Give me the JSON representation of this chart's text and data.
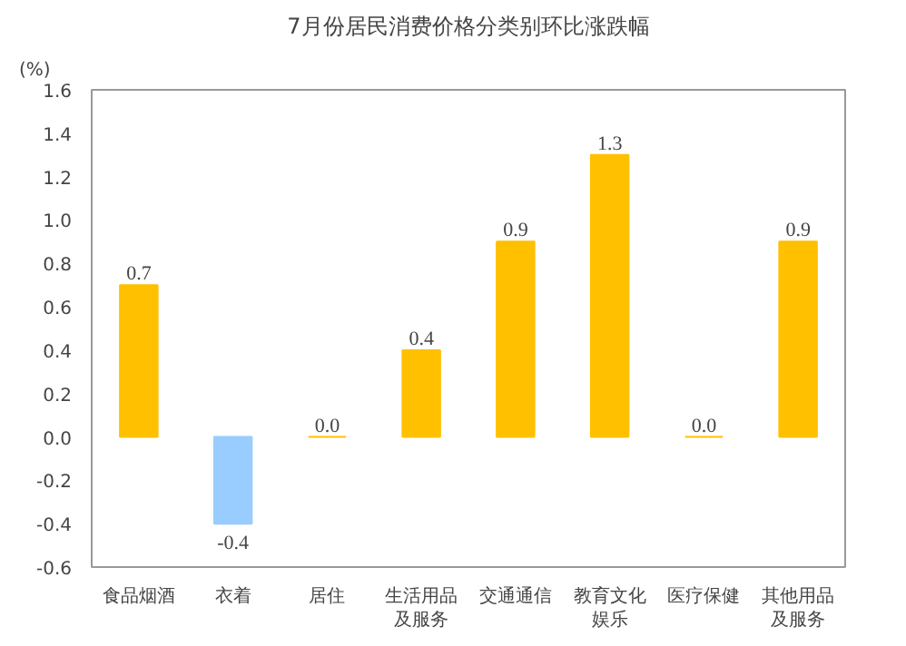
{
  "chart_data": {
    "type": "bar",
    "title": "7月份居民消费价格分类别环比涨跌幅",
    "ylabel": "(%)",
    "categories": [
      "食品烟酒",
      "衣着",
      "居住",
      "生活用品及服务",
      "交通通信",
      "教育文化娱乐",
      "医疗保健",
      "其他用品及服务"
    ],
    "values": [
      0.7,
      -0.4,
      0.0,
      0.4,
      0.9,
      1.3,
      0.0,
      0.9
    ],
    "colors": [
      "#ffc000",
      "#99ccff",
      "#ffc000",
      "#ffc000",
      "#ffc000",
      "#ffc000",
      "#ffc000",
      "#ffc000"
    ],
    "value_labels": [
      "0.7",
      "-0.4",
      "0.0",
      "0.4",
      "0.9",
      "1.3",
      "0.0",
      "0.9"
    ],
    "ylim": [
      -0.6,
      1.6
    ],
    "yticks": [
      {
        "value": -0.6,
        "label": "-0.6"
      },
      {
        "value": -0.4,
        "label": "-0.4"
      },
      {
        "value": -0.2,
        "label": "-0.2"
      },
      {
        "value": 0,
        "label": "0.0"
      },
      {
        "value": 0.2,
        "label": "0.2"
      },
      {
        "value": 0.4,
        "label": "0.4"
      },
      {
        "value": 0.6,
        "label": "0.6"
      },
      {
        "value": 0.8,
        "label": "0.8"
      },
      {
        "value": 1.0,
        "label": "1.0"
      },
      {
        "value": 1.2,
        "label": "1.2"
      },
      {
        "value": 1.4,
        "label": "1.4"
      },
      {
        "value": 1.6,
        "label": "1.6"
      }
    ],
    "grid": false
  }
}
